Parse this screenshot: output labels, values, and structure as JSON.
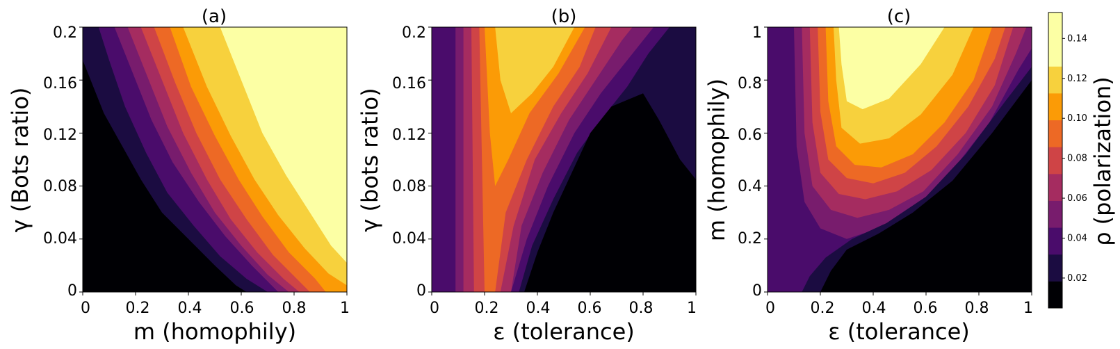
{
  "chart_data": [
    {
      "type": "heatmap",
      "title": "(a)",
      "xlabel": "m (homophily)",
      "ylabel": "γ (Bots ratio)",
      "xlim": [
        0,
        1
      ],
      "ylim": [
        0,
        0.2
      ],
      "x_ticks": [
        "0",
        "0.2",
        "0.4",
        "0.6",
        "0.8",
        "1"
      ],
      "x_tick_values": [
        0,
        0.2,
        0.4,
        0.6,
        0.8,
        1
      ],
      "y_ticks": [
        "0",
        "0.04",
        "0.08",
        "0.12",
        "0.16",
        "0.2"
      ],
      "y_tick_values": [
        0,
        0.04,
        0.08,
        0.12,
        0.16,
        0.2
      ],
      "boundaries": [
        [
          [
            0,
            0.175
          ],
          [
            0.04,
            0.155
          ],
          [
            0.08,
            0.135
          ],
          [
            0.15,
            0.11
          ],
          [
            0.22,
            0.085
          ],
          [
            0.3,
            0.06
          ],
          [
            0.4,
            0.04
          ],
          [
            0.5,
            0.02
          ],
          [
            0.58,
            0.005
          ],
          [
            0.62,
            0
          ]
        ],
        [
          [
            0.06,
            0.2
          ],
          [
            0.1,
            0.175
          ],
          [
            0.16,
            0.14
          ],
          [
            0.24,
            0.105
          ],
          [
            0.32,
            0.075
          ],
          [
            0.42,
            0.05
          ],
          [
            0.52,
            0.027
          ],
          [
            0.62,
            0.01
          ],
          [
            0.7,
            0
          ]
        ],
        [
          [
            0.12,
            0.2
          ],
          [
            0.18,
            0.17
          ],
          [
            0.26,
            0.13
          ],
          [
            0.34,
            0.098
          ],
          [
            0.44,
            0.068
          ],
          [
            0.54,
            0.042
          ],
          [
            0.64,
            0.02
          ],
          [
            0.74,
            0
          ]
        ],
        [
          [
            0.17,
            0.2
          ],
          [
            0.24,
            0.165
          ],
          [
            0.32,
            0.125
          ],
          [
            0.41,
            0.09
          ],
          [
            0.5,
            0.06
          ],
          [
            0.6,
            0.035
          ],
          [
            0.7,
            0.013
          ],
          [
            0.78,
            0
          ]
        ],
        [
          [
            0.22,
            0.2
          ],
          [
            0.3,
            0.16
          ],
          [
            0.38,
            0.12
          ],
          [
            0.47,
            0.085
          ],
          [
            0.56,
            0.055
          ],
          [
            0.66,
            0.03
          ],
          [
            0.76,
            0.01
          ],
          [
            0.82,
            0
          ]
        ],
        [
          [
            0.27,
            0.2
          ],
          [
            0.35,
            0.158
          ],
          [
            0.43,
            0.12
          ],
          [
            0.52,
            0.085
          ],
          [
            0.62,
            0.055
          ],
          [
            0.72,
            0.028
          ],
          [
            0.82,
            0.008
          ],
          [
            0.86,
            0
          ]
        ],
        [
          [
            0.33,
            0.2
          ],
          [
            0.41,
            0.155
          ],
          [
            0.5,
            0.118
          ],
          [
            0.59,
            0.085
          ],
          [
            0.68,
            0.057
          ],
          [
            0.78,
            0.03
          ],
          [
            0.88,
            0.01
          ],
          [
            0.92,
            0
          ]
        ],
        [
          [
            0.38,
            0.2
          ],
          [
            0.47,
            0.155
          ],
          [
            0.56,
            0.118
          ],
          [
            0.65,
            0.085
          ],
          [
            0.74,
            0.058
          ],
          [
            0.84,
            0.033
          ],
          [
            0.93,
            0.014
          ],
          [
            1,
            0.005
          ]
        ],
        [
          [
            0.52,
            0.2
          ],
          [
            0.6,
            0.16
          ],
          [
            0.68,
            0.12
          ],
          [
            0.77,
            0.088
          ],
          [
            0.86,
            0.06
          ],
          [
            0.94,
            0.035
          ],
          [
            1,
            0.022
          ]
        ]
      ]
    },
    {
      "type": "heatmap",
      "title": "(b)",
      "xlabel": "ε (tolerance)",
      "ylabel": "γ (bots ratio)",
      "xlim": [
        0,
        1
      ],
      "ylim": [
        0,
        0.2
      ],
      "x_ticks": [
        "0",
        "0.2",
        "0.4",
        "0.6",
        "0.8",
        "1"
      ],
      "x_tick_values": [
        0,
        0.2,
        0.4,
        0.6,
        0.8,
        1
      ],
      "y_ticks": [
        "0",
        "0.04",
        "0.08",
        "0.12",
        "0.16",
        "0.2"
      ],
      "y_tick_values": [
        0,
        0.04,
        0.08,
        0.12,
        0.16,
        0.2
      ],
      "boundaries": [
        [
          [
            0.35,
            0
          ],
          [
            0.4,
            0.03
          ],
          [
            0.46,
            0.06
          ],
          [
            0.53,
            0.09
          ],
          [
            0.6,
            0.12
          ],
          [
            0.68,
            0.14
          ],
          [
            0.8,
            0.15
          ],
          [
            0.86,
            0.13
          ],
          [
            0.94,
            0.1
          ],
          [
            1,
            0.085
          ]
        ],
        [
          [
            0,
            0.2
          ],
          [
            0,
            0
          ]
        ],
        [
          [
            0.01,
            0.2
          ],
          [
            0.01,
            0
          ],
          [
            0.3,
            0
          ],
          [
            0.36,
            0.04
          ],
          [
            0.44,
            0.08
          ],
          [
            0.54,
            0.12
          ],
          [
            0.64,
            0.15
          ],
          [
            0.76,
            0.18
          ],
          [
            0.84,
            0.2
          ]
        ],
        [
          [
            0.09,
            0.2
          ],
          [
            0.08,
            0
          ],
          [
            0.28,
            0
          ],
          [
            0.34,
            0.05
          ],
          [
            0.42,
            0.09
          ],
          [
            0.52,
            0.13
          ],
          [
            0.62,
            0.16
          ],
          [
            0.72,
            0.19
          ],
          [
            0.76,
            0.2
          ]
        ],
        [
          [
            0.12,
            0.2
          ],
          [
            0.12,
            0
          ],
          [
            0.26,
            0
          ],
          [
            0.31,
            0.05
          ],
          [
            0.39,
            0.1
          ],
          [
            0.49,
            0.135
          ],
          [
            0.59,
            0.165
          ],
          [
            0.68,
            0.2
          ]
        ],
        [
          [
            0.15,
            0.2
          ],
          [
            0.16,
            0
          ],
          [
            0.24,
            0
          ],
          [
            0.28,
            0.06
          ],
          [
            0.36,
            0.1
          ],
          [
            0.46,
            0.14
          ],
          [
            0.56,
            0.17
          ],
          [
            0.62,
            0.2
          ]
        ],
        [
          [
            0.2,
            0.2
          ],
          [
            0.22,
            0.12
          ],
          [
            0.24,
            0.08
          ],
          [
            0.29,
            0.1
          ],
          [
            0.37,
            0.135
          ],
          [
            0.48,
            0.165
          ],
          [
            0.58,
            0.2
          ]
        ],
        [
          [
            0.24,
            0.2
          ],
          [
            0.26,
            0.16
          ],
          [
            0.3,
            0.135
          ],
          [
            0.38,
            0.15
          ],
          [
            0.46,
            0.17
          ],
          [
            0.54,
            0.2
          ]
        ],
        [
          [
            0.3,
            0.2
          ],
          [
            0.32,
            0.185
          ],
          [
            0.38,
            0.18
          ],
          [
            0.45,
            0.19
          ],
          [
            0.5,
            0.2
          ]
        ]
      ]
    },
    {
      "type": "heatmap",
      "title": "(c)",
      "xlabel": "ε (tolerance)",
      "ylabel": "m (homophily)",
      "xlim": [
        0,
        1
      ],
      "ylim": [
        0,
        1
      ],
      "x_ticks": [
        "0",
        "0.2",
        "0.4",
        "0.6",
        "0.8",
        "1"
      ],
      "x_tick_values": [
        0,
        0.2,
        0.4,
        0.6,
        0.8,
        1
      ],
      "y_ticks": [
        "0",
        "0.2",
        "0.4",
        "0.6",
        "0.8",
        "1"
      ],
      "y_tick_values": [
        0,
        0.2,
        0.4,
        0.6,
        0.8,
        1
      ],
      "boundaries": [
        [
          [
            0.2,
            0
          ],
          [
            0.24,
            0.08
          ],
          [
            0.3,
            0.16
          ],
          [
            0.42,
            0.22
          ],
          [
            0.55,
            0.3
          ],
          [
            0.7,
            0.42
          ],
          [
            0.85,
            0.6
          ],
          [
            1,
            0.8
          ]
        ],
        [
          [
            0.13,
            0
          ],
          [
            0.16,
            0.06
          ],
          [
            0.22,
            0.13
          ],
          [
            0.32,
            0.2
          ],
          [
            0.45,
            0.26
          ],
          [
            0.6,
            0.36
          ],
          [
            0.75,
            0.52
          ],
          [
            0.9,
            0.72
          ],
          [
            1,
            0.85
          ]
        ],
        [
          [
            0.06,
            1
          ],
          [
            0.06,
            0.5
          ],
          [
            0.08,
            0.3
          ],
          [
            0.12,
            0.18
          ],
          [
            0.18,
            0.1
          ],
          [
            0.25,
            0.06
          ],
          [
            0.1,
            0
          ],
          [
            0,
            0
          ],
          [
            0,
            1
          ]
        ],
        [
          [
            0.1,
            1
          ],
          [
            0.11,
            0.55
          ],
          [
            0.14,
            0.34
          ],
          [
            0.2,
            0.24
          ],
          [
            0.3,
            0.2
          ],
          [
            0.42,
            0.24
          ],
          [
            0.56,
            0.32
          ],
          [
            0.7,
            0.46
          ],
          [
            0.84,
            0.64
          ],
          [
            0.95,
            0.84
          ],
          [
            1,
            0.92
          ]
        ],
        [
          [
            0.13,
            1
          ],
          [
            0.14,
            0.6
          ],
          [
            0.17,
            0.4
          ],
          [
            0.24,
            0.31
          ],
          [
            0.34,
            0.28
          ],
          [
            0.46,
            0.31
          ],
          [
            0.59,
            0.38
          ],
          [
            0.72,
            0.52
          ],
          [
            0.85,
            0.7
          ],
          [
            0.94,
            0.9
          ],
          [
            0.98,
            1
          ]
        ],
        [
          [
            0.16,
            1
          ],
          [
            0.17,
            0.64
          ],
          [
            0.2,
            0.45
          ],
          [
            0.27,
            0.37
          ],
          [
            0.37,
            0.35
          ],
          [
            0.49,
            0.38
          ],
          [
            0.62,
            0.46
          ],
          [
            0.75,
            0.6
          ],
          [
            0.86,
            0.78
          ],
          [
            0.93,
            1
          ]
        ],
        [
          [
            0.19,
            1
          ],
          [
            0.2,
            0.68
          ],
          [
            0.23,
            0.5
          ],
          [
            0.3,
            0.43
          ],
          [
            0.4,
            0.41
          ],
          [
            0.52,
            0.45
          ],
          [
            0.64,
            0.55
          ],
          [
            0.76,
            0.7
          ],
          [
            0.86,
            0.88
          ],
          [
            0.9,
            1
          ]
        ],
        [
          [
            0.22,
            1
          ],
          [
            0.23,
            0.72
          ],
          [
            0.26,
            0.55
          ],
          [
            0.33,
            0.48
          ],
          [
            0.43,
            0.47
          ],
          [
            0.55,
            0.52
          ],
          [
            0.67,
            0.64
          ],
          [
            0.78,
            0.8
          ],
          [
            0.85,
            1
          ]
        ],
        [
          [
            0.25,
            1
          ],
          [
            0.26,
            0.8
          ],
          [
            0.28,
            0.62
          ],
          [
            0.35,
            0.56
          ],
          [
            0.46,
            0.58
          ],
          [
            0.58,
            0.67
          ],
          [
            0.7,
            0.82
          ],
          [
            0.78,
            1
          ]
        ],
        [
          [
            0.27,
            1
          ],
          [
            0.28,
            0.86
          ],
          [
            0.3,
            0.72
          ],
          [
            0.36,
            0.69
          ],
          [
            0.46,
            0.73
          ],
          [
            0.58,
            0.86
          ],
          [
            0.67,
            1
          ]
        ]
      ]
    }
  ],
  "colorbar": {
    "label": "ρ (polarization)",
    "ticks": [
      "0.02",
      "0.04",
      "0.06",
      "0.08",
      "0.10",
      "0.12",
      "0.14"
    ],
    "tick_values": [
      0.02,
      0.04,
      0.06,
      0.08,
      0.1,
      0.12,
      0.14
    ],
    "levels": [
      0.01,
      0.02,
      0.03,
      0.04,
      0.05,
      0.06,
      0.07,
      0.08,
      0.09,
      0.1,
      0.11,
      0.12,
      0.13,
      0.14,
      0.15
    ],
    "colors": [
      "#000004",
      "#1b0c41",
      "#4a0c6b",
      "#781c6d",
      "#a52c60",
      "#cf4446",
      "#ed6925",
      "#fb9b06",
      "#f7d13d",
      "#fcffa4"
    ]
  }
}
